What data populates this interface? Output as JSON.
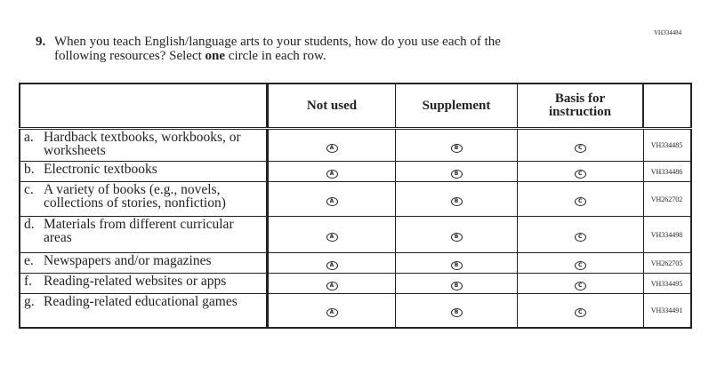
{
  "form_code": "VH334484",
  "question": {
    "number": "9.",
    "line1": "When you teach English/language arts to your students, how do you use each of the",
    "line2_pre": "following resources? Select ",
    "line2_bold": "one",
    "line2_post": " circle in each row."
  },
  "columns": [
    "Not used",
    "Supplement",
    "Basis for instruction"
  ],
  "rows": [
    {
      "letter": "a.",
      "text": "Hardback textbooks, workbooks, or worksheets",
      "code": "VH334485",
      "h": 37
    },
    {
      "letter": "b.",
      "text": "Electronic textbooks",
      "code": "VH334486",
      "h": 23
    },
    {
      "letter": "c.",
      "text": "A variety of books (e.g., novels, collections of stories, nonfiction)",
      "code": "VH262702",
      "h": 39
    },
    {
      "letter": "d.",
      "text": "Materials from different curricular areas",
      "code": "VH334498",
      "h": 41
    },
    {
      "letter": "e.",
      "text": "Newspapers and/or magazines",
      "code": "VH262705",
      "h": 23
    },
    {
      "letter": "f.",
      "text": "Reading-related websites or apps",
      "code": "VH334495",
      "h": 23
    },
    {
      "letter": "g.",
      "text": "Reading-related educational games",
      "code": "VH334491",
      "h": 38
    }
  ],
  "options": [
    "A",
    "B",
    "C"
  ]
}
